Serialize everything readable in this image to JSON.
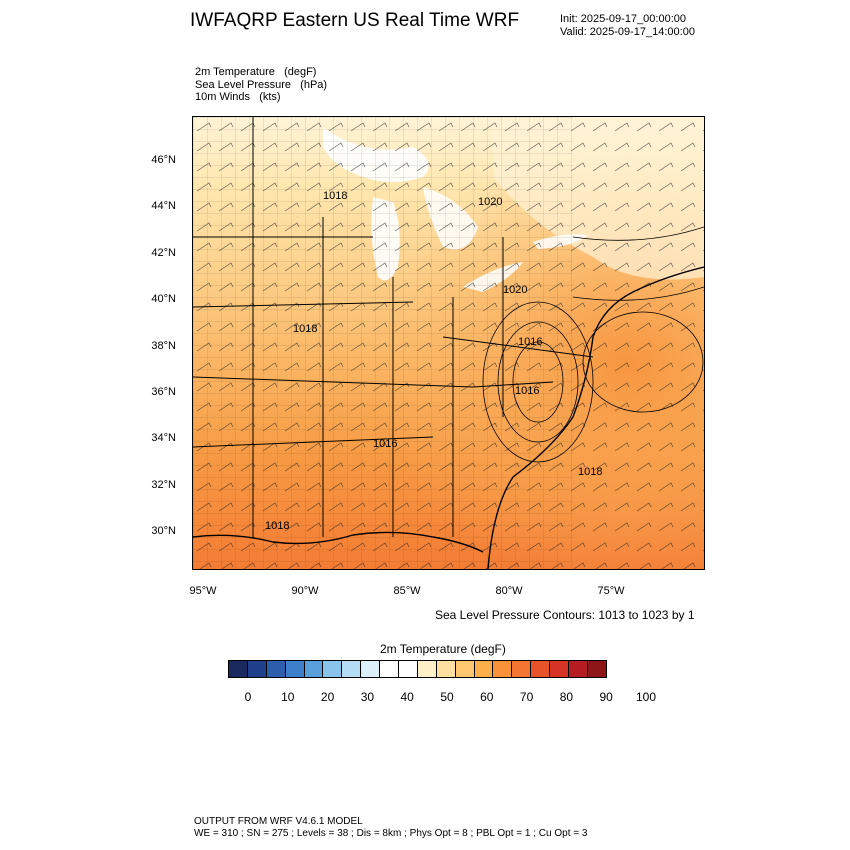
{
  "header": {
    "title": "IWFAQRP Eastern US Real Time WRF",
    "init": "Init: 2025-09-17_00:00:00",
    "valid": "Valid: 2025-09-17_14:00:00"
  },
  "fields": [
    {
      "name": "2m Temperature",
      "unit": "(degF)"
    },
    {
      "name": "Sea Level Pressure",
      "unit": "(hPa)"
    },
    {
      "name": "10m Winds",
      "unit": "(kts)"
    }
  ],
  "map": {
    "lat_labels": [
      "46°N",
      "44°N",
      "42°N",
      "40°N",
      "38°N",
      "36°N",
      "34°N",
      "32°N",
      "30°N"
    ],
    "lon_labels": [
      "95°W",
      "90°W",
      "85°W",
      "80°W",
      "75°W"
    ],
    "pressure_labels": [
      "1018",
      "1020",
      "1020",
      "1018",
      "1016",
      "1016",
      "1016",
      "1018",
      "1018"
    ],
    "contour_info": "Sea Level Pressure Contours: 1013 to 1023 by 1"
  },
  "colorbar": {
    "title": "2m Temperature   (degF)",
    "labels": [
      "0",
      "10",
      "20",
      "30",
      "40",
      "50",
      "60",
      "70",
      "80",
      "90",
      "100"
    ],
    "colors": [
      "#1b2a5e",
      "#1f3f8a",
      "#2b5fae",
      "#3d7fcb",
      "#5aa0dc",
      "#88c4ec",
      "#b4dcf4",
      "#dcf0fa",
      "#ffffff",
      "#ffffff",
      "#fff0c8",
      "#ffe0a0",
      "#ffc870",
      "#fdb04a",
      "#f99238",
      "#f47530",
      "#e9532a",
      "#d63526",
      "#b61d22",
      "#8e1518"
    ]
  },
  "footer": {
    "line1": "OUTPUT FROM WRF V4.6.1 MODEL",
    "line2": "WE = 310 ; SN = 275 ; Levels = 38 ; Dis = 8km ; Phys Opt = 8 ; PBL Opt = 1 ; Cu Opt = 3"
  }
}
